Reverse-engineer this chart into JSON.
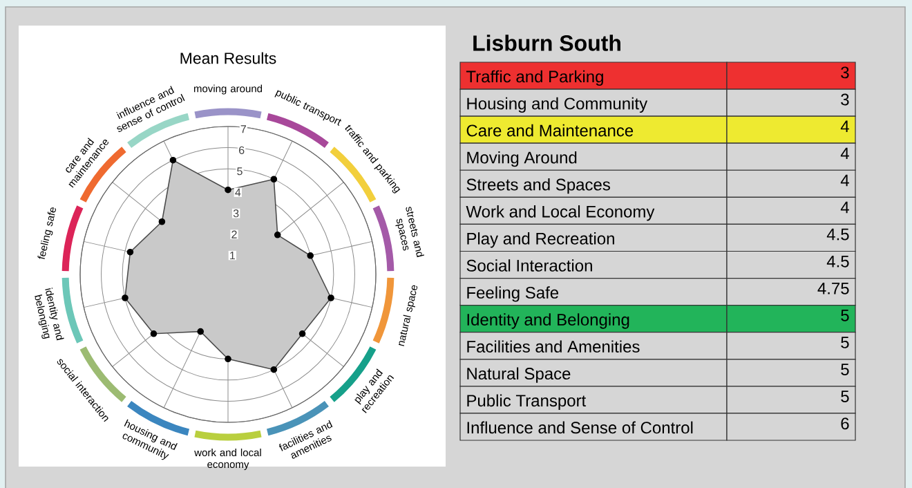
{
  "chart_data": [
    {
      "type": "radar",
      "title": "Mean Results",
      "categories": [
        "moving around",
        "public transport",
        "traffic and parking",
        "streets and spaces",
        "natural space",
        "play and recreation",
        "facilities and amenities",
        "work and local economy",
        "housing and community",
        "social interaction",
        "identity and belonging",
        "feeling safe",
        "care and maintenance",
        "influence and sense of control"
      ],
      "colors": [
        "#9a93c8",
        "#a8489a",
        "#f2cf3c",
        "#a45aa8",
        "#f0963a",
        "#16a08a",
        "#4a93b8",
        "#b9cf3e",
        "#3b86bf",
        "#9cbb72",
        "#6cc7b8",
        "#dc2458",
        "#ef6a30",
        "#98d6c6"
      ],
      "series": [
        {
          "color": "#c9c9c9",
          "values": [
            4,
            5,
            3,
            4,
            5,
            4.5,
            5,
            4,
            3,
            4.5,
            5,
            4.75,
            4,
            6
          ]
        }
      ],
      "ylim": [
        0,
        7
      ],
      "yticks": [
        1,
        2,
        3,
        4,
        5,
        6,
        7
      ],
      "grid": true,
      "marker": "circle"
    },
    {
      "type": "other",
      "title": "Lisburn South",
      "categories": [
        "Traffic and Parking",
        "Housing and Community",
        "Care and Maintenance",
        "Moving Around",
        "Streets and Spaces",
        "Work and Local Economy",
        "Play and Recreation",
        "Social Interaction",
        "Feeling Safe",
        "Identity and Belonging",
        "Facilities and Amenities",
        "Natural Space",
        "Public Transport",
        "Influence and Sense of Control"
      ],
      "values": [
        3,
        3,
        4,
        4,
        4,
        4,
        4.5,
        4.5,
        4.75,
        5,
        5,
        5,
        5,
        6
      ],
      "colors": [
        "#ee3030",
        "#d6d6d6",
        "#eeea30",
        "#d6d6d6",
        "#d6d6d6",
        "#d6d6d6",
        "#d6d6d6",
        "#d6d6d6",
        "#d6d6d6",
        "#22b45a",
        "#d6d6d6",
        "#d6d6d6",
        "#d6d6d6",
        "#d6d6d6"
      ],
      "data_labels": true
    }
  ]
}
